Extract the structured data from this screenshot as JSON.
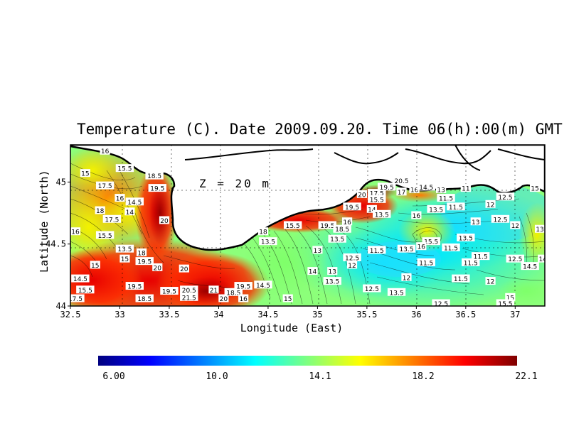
{
  "title": "Temperature (C). Date 2009.09.20. Time 06(h):00(m) GMT",
  "depth_label": "Z = 20 m",
  "xlabel": "Longitude (East)",
  "ylabel": "Latitude (North)",
  "x_ticks": [
    "32.5",
    "33",
    "33.5",
    "34",
    "34.5",
    "35",
    "35.5",
    "36",
    "36.5",
    "37"
  ],
  "y_ticks": [
    "44",
    "44.5",
    "45"
  ],
  "colorbar": {
    "labels": [
      "6.00",
      "10.0",
      "14.1",
      "18.2",
      "22.1"
    ],
    "colors": [
      "#00007f",
      "#0000ff",
      "#007fff",
      "#00ffff",
      "#7fff7f",
      "#ffff00",
      "#ff7f00",
      "#ff0000",
      "#7f0000"
    ]
  },
  "map": {
    "type": "heatmap",
    "xlim": [
      32.5,
      37.3
    ],
    "ylim": [
      44.0,
      45.3
    ],
    "land_color": "#ffffff",
    "contour_labels": [
      {
        "lon": 32.85,
        "lat": 45.25,
        "t": "16"
      },
      {
        "lon": 32.65,
        "lat": 45.07,
        "t": "15"
      },
      {
        "lon": 33.05,
        "lat": 45.11,
        "t": "15.5"
      },
      {
        "lon": 32.85,
        "lat": 44.97,
        "t": "17.5"
      },
      {
        "lon": 33.35,
        "lat": 45.05,
        "t": "18.5"
      },
      {
        "lon": 33.0,
        "lat": 44.87,
        "t": "16"
      },
      {
        "lon": 33.15,
        "lat": 44.84,
        "t": "14.5"
      },
      {
        "lon": 33.38,
        "lat": 44.95,
        "t": "19.5"
      },
      {
        "lon": 32.8,
        "lat": 44.77,
        "t": "18"
      },
      {
        "lon": 32.92,
        "lat": 44.7,
        "t": "17.5"
      },
      {
        "lon": 33.1,
        "lat": 44.76,
        "t": "14"
      },
      {
        "lon": 32.55,
        "lat": 44.6,
        "t": "16"
      },
      {
        "lon": 32.85,
        "lat": 44.57,
        "t": "15.5"
      },
      {
        "lon": 33.45,
        "lat": 44.69,
        "t": "20"
      },
      {
        "lon": 33.05,
        "lat": 44.46,
        "t": "13.5"
      },
      {
        "lon": 33.05,
        "lat": 44.38,
        "t": "15"
      },
      {
        "lon": 33.22,
        "lat": 44.43,
        "t": "18"
      },
      {
        "lon": 33.25,
        "lat": 44.36,
        "t": "19.5"
      },
      {
        "lon": 32.75,
        "lat": 44.33,
        "t": "15"
      },
      {
        "lon": 33.38,
        "lat": 44.31,
        "t": "20"
      },
      {
        "lon": 33.65,
        "lat": 44.3,
        "t": "20"
      },
      {
        "lon": 32.6,
        "lat": 44.22,
        "t": "14.5"
      },
      {
        "lon": 32.65,
        "lat": 44.13,
        "t": "15.5"
      },
      {
        "lon": 32.55,
        "lat": 44.06,
        "t": "17.5"
      },
      {
        "lon": 33.15,
        "lat": 44.16,
        "t": "19.5"
      },
      {
        "lon": 33.25,
        "lat": 44.06,
        "t": "18.5"
      },
      {
        "lon": 33.5,
        "lat": 44.12,
        "t": "19.5"
      },
      {
        "lon": 33.7,
        "lat": 44.13,
        "t": "20.5"
      },
      {
        "lon": 33.7,
        "lat": 44.07,
        "t": "21.5"
      },
      {
        "lon": 33.95,
        "lat": 44.13,
        "t": "21"
      },
      {
        "lon": 34.05,
        "lat": 44.06,
        "t": "20"
      },
      {
        "lon": 34.15,
        "lat": 44.11,
        "t": "18.5"
      },
      {
        "lon": 34.25,
        "lat": 44.16,
        "t": "19.5"
      },
      {
        "lon": 34.25,
        "lat": 44.06,
        "t": "16"
      },
      {
        "lon": 34.45,
        "lat": 44.17,
        "t": "14.5"
      },
      {
        "lon": 34.7,
        "lat": 44.06,
        "t": "15"
      },
      {
        "lon": 34.5,
        "lat": 44.52,
        "t": "13.5"
      },
      {
        "lon": 34.75,
        "lat": 44.65,
        "t": "15.5"
      },
      {
        "lon": 34.45,
        "lat": 44.6,
        "t": "18"
      },
      {
        "lon": 35.1,
        "lat": 44.65,
        "t": "19.5"
      },
      {
        "lon": 35.25,
        "lat": 44.62,
        "t": "18.5"
      },
      {
        "lon": 35.2,
        "lat": 44.54,
        "t": "13.5"
      },
      {
        "lon": 35.3,
        "lat": 44.68,
        "t": "16"
      },
      {
        "lon": 35.0,
        "lat": 44.45,
        "t": "13"
      },
      {
        "lon": 35.35,
        "lat": 44.8,
        "t": "19.5"
      },
      {
        "lon": 35.45,
        "lat": 44.9,
        "t": "20"
      },
      {
        "lon": 35.6,
        "lat": 44.91,
        "t": "17.5"
      },
      {
        "lon": 35.6,
        "lat": 44.86,
        "t": "15.5"
      },
      {
        "lon": 35.7,
        "lat": 44.96,
        "t": "19.5"
      },
      {
        "lon": 35.55,
        "lat": 44.78,
        "t": "14"
      },
      {
        "lon": 35.65,
        "lat": 44.74,
        "t": "13.5"
      },
      {
        "lon": 35.85,
        "lat": 45.01,
        "t": "20.5"
      },
      {
        "lon": 35.85,
        "lat": 44.92,
        "t": "17"
      },
      {
        "lon": 35.98,
        "lat": 44.94,
        "t": "16"
      },
      {
        "lon": 36.1,
        "lat": 44.96,
        "t": "14.5"
      },
      {
        "lon": 36.25,
        "lat": 44.94,
        "t": "13"
      },
      {
        "lon": 36.5,
        "lat": 44.95,
        "t": "11"
      },
      {
        "lon": 36.3,
        "lat": 44.87,
        "t": "11.5"
      },
      {
        "lon": 36.4,
        "lat": 44.8,
        "t": "11.5"
      },
      {
        "lon": 36.2,
        "lat": 44.78,
        "t": "13.5"
      },
      {
        "lon": 36.0,
        "lat": 44.73,
        "t": "16"
      },
      {
        "lon": 35.35,
        "lat": 44.39,
        "t": "12.5"
      },
      {
        "lon": 35.35,
        "lat": 44.33,
        "t": "12"
      },
      {
        "lon": 35.15,
        "lat": 44.28,
        "t": "13"
      },
      {
        "lon": 35.15,
        "lat": 44.2,
        "t": "13.5"
      },
      {
        "lon": 34.95,
        "lat": 44.28,
        "t": "14"
      },
      {
        "lon": 35.6,
        "lat": 44.45,
        "t": "11.5"
      },
      {
        "lon": 35.9,
        "lat": 44.46,
        "t": "13.5"
      },
      {
        "lon": 36.15,
        "lat": 44.52,
        "t": "15.5"
      },
      {
        "lon": 36.05,
        "lat": 44.48,
        "t": "16"
      },
      {
        "lon": 36.35,
        "lat": 44.47,
        "t": "11.5"
      },
      {
        "lon": 36.5,
        "lat": 44.55,
        "t": "13.5"
      },
      {
        "lon": 36.75,
        "lat": 44.82,
        "t": "12"
      },
      {
        "lon": 36.9,
        "lat": 44.88,
        "t": "12.5"
      },
      {
        "lon": 36.6,
        "lat": 44.68,
        "t": "13"
      },
      {
        "lon": 36.85,
        "lat": 44.7,
        "t": "12.5"
      },
      {
        "lon": 37.0,
        "lat": 44.65,
        "t": "12"
      },
      {
        "lon": 37.2,
        "lat": 44.95,
        "t": "15"
      },
      {
        "lon": 37.25,
        "lat": 44.62,
        "t": "13"
      },
      {
        "lon": 36.1,
        "lat": 44.35,
        "t": "11.5"
      },
      {
        "lon": 36.55,
        "lat": 44.35,
        "t": "11.5"
      },
      {
        "lon": 36.65,
        "lat": 44.4,
        "t": "11.5"
      },
      {
        "lon": 37.0,
        "lat": 44.38,
        "t": "12.5"
      },
      {
        "lon": 37.15,
        "lat": 44.32,
        "t": "14.5"
      },
      {
        "lon": 37.28,
        "lat": 44.38,
        "t": "14"
      },
      {
        "lon": 35.9,
        "lat": 44.23,
        "t": "12"
      },
      {
        "lon": 36.45,
        "lat": 44.22,
        "t": "11.5"
      },
      {
        "lon": 36.75,
        "lat": 44.2,
        "t": "12"
      },
      {
        "lon": 35.55,
        "lat": 44.14,
        "t": "12.5"
      },
      {
        "lon": 35.8,
        "lat": 44.11,
        "t": "13.5"
      },
      {
        "lon": 36.25,
        "lat": 44.02,
        "t": "12.5"
      },
      {
        "lon": 36.95,
        "lat": 44.07,
        "t": "15"
      },
      {
        "lon": 36.9,
        "lat": 44.02,
        "t": "15.5"
      }
    ]
  }
}
